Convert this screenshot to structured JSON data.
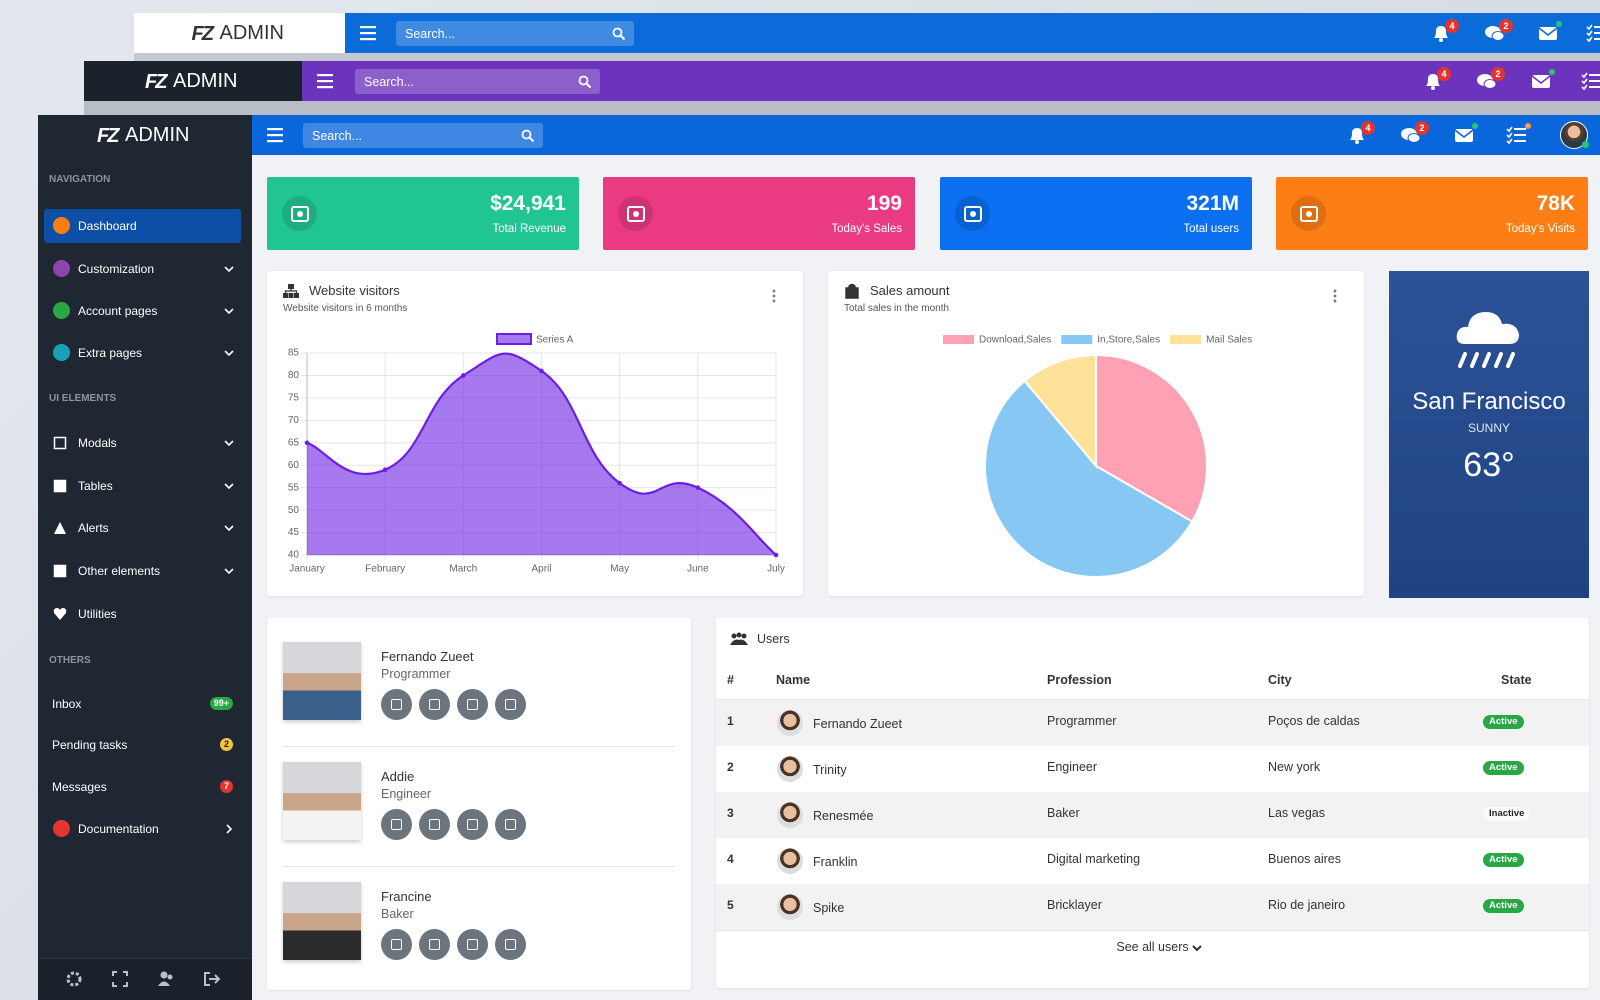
{
  "navbar": {
    "logo": "FZ",
    "brand": "ADMIN",
    "search": "Search...",
    "badges": [
      "4",
      "2"
    ]
  },
  "sidebar": {
    "sections": [
      {
        "title": "NAVIGATION",
        "items": [
          {
            "label": "Dashboard"
          },
          {
            "label": "Customization"
          },
          {
            "label": "Account pages"
          },
          {
            "label": "Extra pages"
          }
        ]
      },
      {
        "title": "UI ELEMENTS",
        "items": [
          {
            "label": "Modals"
          },
          {
            "label": "Tables"
          },
          {
            "label": "Alerts"
          },
          {
            "label": "Other elements"
          },
          {
            "label": "Utilities"
          }
        ]
      },
      {
        "title": "OTHERS",
        "items": [
          {
            "label": "Inbox",
            "badge": "99+"
          },
          {
            "label": "Pending tasks",
            "badge": "2"
          },
          {
            "label": "Messages",
            "badge": "7"
          },
          {
            "label": "Documentation"
          }
        ]
      }
    ]
  },
  "stats": [
    {
      "value": "$24,941",
      "label": "Total Revenue",
      "color": "#21c591"
    },
    {
      "value": "199",
      "label": "Today's Sales",
      "color": "#ea3a82"
    },
    {
      "value": "321M",
      "label": "Total users",
      "color": "#0a6ff0"
    },
    {
      "value": "78K",
      "label": "Today's Visits",
      "color": "#fd7e14"
    }
  ],
  "chart_data": [
    {
      "type": "line",
      "title": "Website visitors",
      "subtitle": "Website visitors in 6 months",
      "categories": [
        "January",
        "February",
        "March",
        "April",
        "May",
        "June",
        "July"
      ],
      "series": [
        {
          "name": "Series A",
          "color": "#6a1fe3",
          "values": [
            65,
            59,
            80,
            81,
            56,
            55,
            40
          ]
        }
      ],
      "ylim": [
        40,
        85
      ],
      "yticks": [
        40,
        45,
        50,
        55,
        60,
        65,
        70,
        75,
        80,
        85
      ],
      "grid": true
    },
    {
      "type": "pie",
      "title": "Sales amount",
      "subtitle": "Total sales in the month",
      "categories": [
        "Download,Sales",
        "In,Store,Sales",
        "Mail Sales"
      ],
      "values": [
        300,
        500,
        100
      ],
      "colors": [
        "#ffa1b5",
        "#86c7f3",
        "#ffe29a"
      ]
    }
  ],
  "weather": {
    "city": "San Francisco",
    "condition": "SUNNY",
    "temperature": "63°"
  },
  "profiles": [
    {
      "name": "Fernando Zueet",
      "role": "Programmer"
    },
    {
      "name": "Addie",
      "role": "Engineer"
    },
    {
      "name": "Francine",
      "role": "Baker"
    }
  ],
  "users": {
    "title": "Users",
    "columns": [
      "#",
      "Name",
      "Profession",
      "City",
      "State"
    ],
    "rows": [
      {
        "id": "1",
        "name": "Fernando Zueet",
        "profession": "Programmer",
        "city": "Poços de caldas",
        "state": "Active",
        "state_color": "#28a745",
        "state_text_color": "#ffffff"
      },
      {
        "id": "2",
        "name": "Trinity",
        "profession": "Engineer",
        "city": "New york",
        "state": "Active",
        "state_color": "#28a745",
        "state_text_color": "#ffffff"
      },
      {
        "id": "3",
        "name": "Renesmée",
        "profession": "Baker",
        "city": "Las vegas",
        "state": "Inactive",
        "state_color": "#f8f9fa",
        "state_text_color": "#212529"
      },
      {
        "id": "4",
        "name": "Franklin",
        "profession": "Digital marketing",
        "city": "Buenos aires",
        "state": "Active",
        "state_color": "#28a745",
        "state_text_color": "#ffffff"
      },
      {
        "id": "5",
        "name": "Spike",
        "profession": "Bricklayer",
        "city": "Rio de janeiro",
        "state": "Active",
        "state_color": "#28a745",
        "state_text_color": "#ffffff"
      }
    ],
    "footer": "See all users"
  }
}
